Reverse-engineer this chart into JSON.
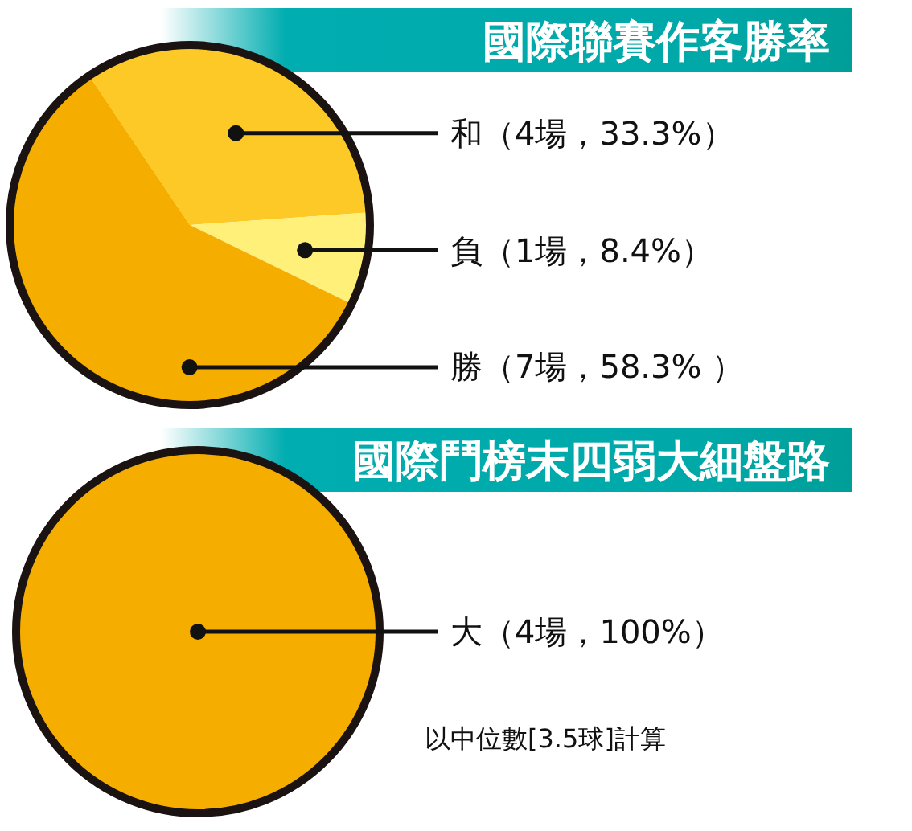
{
  "chart_data": [
    {
      "type": "pie",
      "title": "國際聯賽作客勝率",
      "categories": [
        "和",
        "負",
        "勝"
      ],
      "values": [
        4,
        1,
        7
      ],
      "colors": [
        "#fdc926",
        "#fff07a",
        "#f5ad00"
      ],
      "value_labels": [
        "（4場，33.3%）",
        "（1場，8.4%）",
        "（7場，58.3% ）"
      ]
    },
    {
      "type": "pie",
      "title": "國際鬥榜末四弱大細盤路",
      "categories": [
        "大"
      ],
      "values": [
        4
      ],
      "colors": [
        "#f5ad00"
      ],
      "value_labels": [
        "（4場，100%）"
      ],
      "annotations": [
        "以中位數[3.5球]計算"
      ]
    }
  ]
}
